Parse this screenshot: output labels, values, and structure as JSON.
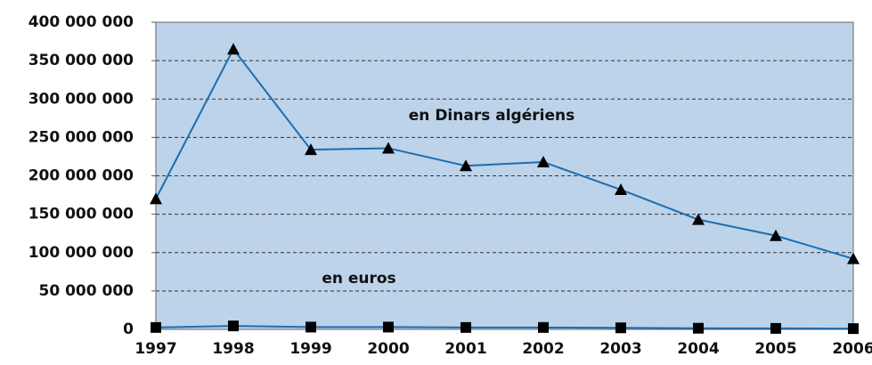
{
  "chart_data": {
    "type": "line",
    "categories": [
      "1997",
      "1998",
      "1999",
      "2000",
      "2001",
      "2002",
      "2003",
      "2004",
      "2005",
      "2006"
    ],
    "series": [
      {
        "name": "en Dinars algériens",
        "color": "#1c6db0",
        "marker": "triangle",
        "marker_color": "#000000",
        "values": [
          170000000,
          365000000,
          234000000,
          236000000,
          213000000,
          218000000,
          182000000,
          143000000,
          122000000,
          92000000
        ]
      },
      {
        "name": "en euros",
        "color": "#1c6db0",
        "marker": "square",
        "marker_color": "#000000",
        "values": [
          2500000,
          4500000,
          3000000,
          3000000,
          2500000,
          2500000,
          2000000,
          1500000,
          1300000,
          1000000
        ]
      }
    ],
    "ylim": [
      0,
      400000000
    ],
    "yticks": [
      {
        "value": 0,
        "label": "0"
      },
      {
        "value": 50000000,
        "label": "50 000 000"
      },
      {
        "value": 100000000,
        "label": "100 000 000"
      },
      {
        "value": 150000000,
        "label": "150 000 000"
      },
      {
        "value": 200000000,
        "label": "200 000 000"
      },
      {
        "value": 250000000,
        "label": "250 000 000"
      },
      {
        "value": 300000000,
        "label": "300 000 000"
      },
      {
        "value": 350000000,
        "label": "350 000 000"
      },
      {
        "value": 400000000,
        "label": "400 000 000"
      }
    ],
    "grid": true,
    "plot_background": "#bcd3ea"
  }
}
